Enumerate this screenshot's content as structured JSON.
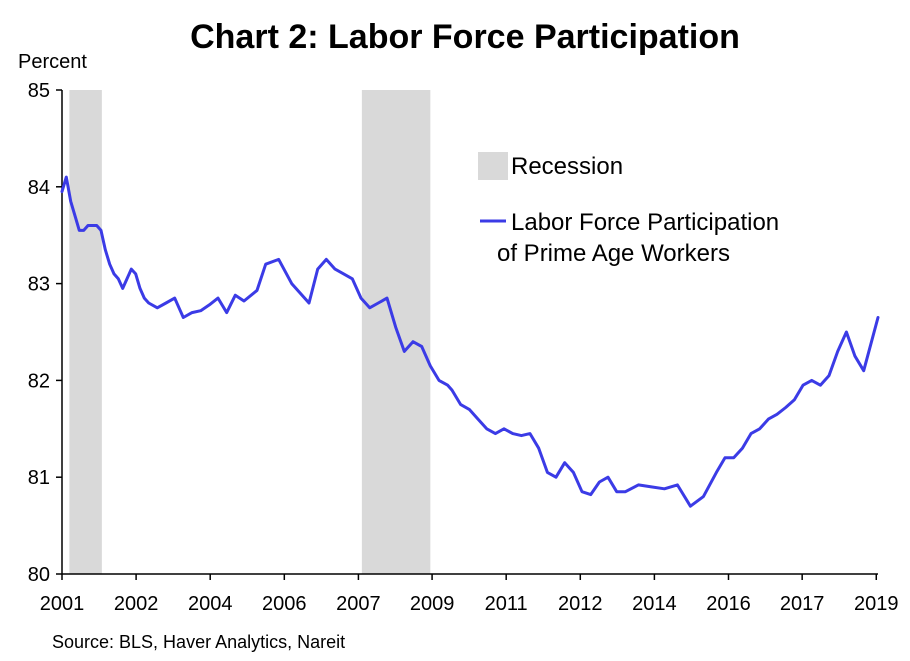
{
  "chart_data": {
    "type": "line",
    "title": "Chart 2: Labor Force Participation",
    "ylabel": "Percent",
    "source": "Source: BLS, Haver Analytics, Nareit",
    "ylim": [
      80,
      85
    ],
    "yticks": [
      "80",
      "81",
      "82",
      "83",
      "84",
      "85"
    ],
    "xlim": [
      2001.0,
      2019.83
    ],
    "xtick_labels": [
      "2001",
      "2002",
      "2004",
      "2006",
      "2007",
      "2009",
      "2011",
      "2012",
      "2014",
      "2016",
      "2017",
      "2019"
    ],
    "xtick_positions": [
      2001.0,
      2002.71,
      2004.42,
      2006.13,
      2007.84,
      2009.54,
      2011.25,
      2012.96,
      2014.67,
      2016.38,
      2018.08,
      2019.79
    ],
    "grid": false,
    "legend_position": "upper-right",
    "recessions": [
      {
        "start": 2001.17,
        "end": 2001.92
      },
      {
        "start": 2007.92,
        "end": 2009.5
      }
    ],
    "colors": {
      "line": "#3b3be6",
      "recession": "#d9d9d9"
    },
    "legend": {
      "recession_label": "Recession",
      "line_label_1": "Labor Force Participation",
      "line_label_2": "of Prime Age Workers"
    },
    "series": [
      {
        "name": "Labor Force Participation of Prime Age Workers",
        "x": [
          2001.0,
          2001.1,
          2001.2,
          2001.3,
          2001.4,
          2001.5,
          2001.6,
          2001.7,
          2001.8,
          2001.9,
          2002.0,
          2002.1,
          2002.2,
          2002.3,
          2002.4,
          2002.5,
          2002.6,
          2002.7,
          2002.8,
          2002.9,
          2003.0,
          2003.2,
          2003.4,
          2003.6,
          2003.7,
          2003.8,
          2004.0,
          2004.2,
          2004.4,
          2004.6,
          2004.8,
          2005.0,
          2005.2,
          2005.5,
          2005.7,
          2006.0,
          2006.3,
          2006.5,
          2006.7,
          2006.9,
          2007.1,
          2007.3,
          2007.5,
          2007.7,
          2007.9,
          2008.1,
          2008.3,
          2008.5,
          2008.7,
          2008.9,
          2009.1,
          2009.3,
          2009.5,
          2009.7,
          2009.9,
          2010.0,
          2010.2,
          2010.4,
          2010.6,
          2010.8,
          2011.0,
          2011.2,
          2011.4,
          2011.6,
          2011.8,
          2012.0,
          2012.2,
          2012.4,
          2012.6,
          2012.8,
          2013.0,
          2013.2,
          2013.4,
          2013.6,
          2013.8,
          2014.0,
          2014.3,
          2014.6,
          2014.9,
          2015.2,
          2015.5,
          2015.8,
          2016.1,
          2016.3,
          2016.5,
          2016.7,
          2016.9,
          2017.1,
          2017.3,
          2017.5,
          2017.7,
          2017.9,
          2018.1,
          2018.3,
          2018.5,
          2018.7,
          2018.9,
          2019.1,
          2019.3,
          2019.5,
          2019.83
        ],
        "values": [
          83.95,
          84.1,
          83.85,
          83.7,
          83.55,
          83.55,
          83.6,
          83.6,
          83.6,
          83.55,
          83.35,
          83.2,
          83.1,
          83.05,
          82.95,
          83.05,
          83.15,
          83.1,
          82.95,
          82.85,
          82.8,
          82.75,
          82.8,
          82.85,
          82.75,
          82.65,
          82.7,
          82.72,
          82.78,
          82.85,
          82.7,
          82.88,
          82.82,
          82.93,
          83.2,
          83.25,
          83.0,
          82.9,
          82.8,
          83.15,
          83.25,
          83.15,
          83.1,
          83.05,
          82.85,
          82.75,
          82.8,
          82.85,
          82.55,
          82.3,
          82.4,
          82.35,
          82.15,
          82.0,
          81.95,
          81.9,
          81.75,
          81.7,
          81.6,
          81.5,
          81.45,
          81.5,
          81.45,
          81.43,
          81.45,
          81.3,
          81.05,
          81.0,
          81.15,
          81.05,
          80.85,
          80.82,
          80.95,
          81.0,
          80.85,
          80.85,
          80.92,
          80.9,
          80.88,
          80.92,
          80.7,
          80.8,
          81.05,
          81.2,
          81.2,
          81.3,
          81.45,
          81.5,
          81.6,
          81.65,
          81.72,
          81.8,
          81.95,
          82.0,
          81.95,
          82.05,
          82.3,
          82.5,
          82.25,
          82.1,
          82.65
        ]
      }
    ]
  }
}
